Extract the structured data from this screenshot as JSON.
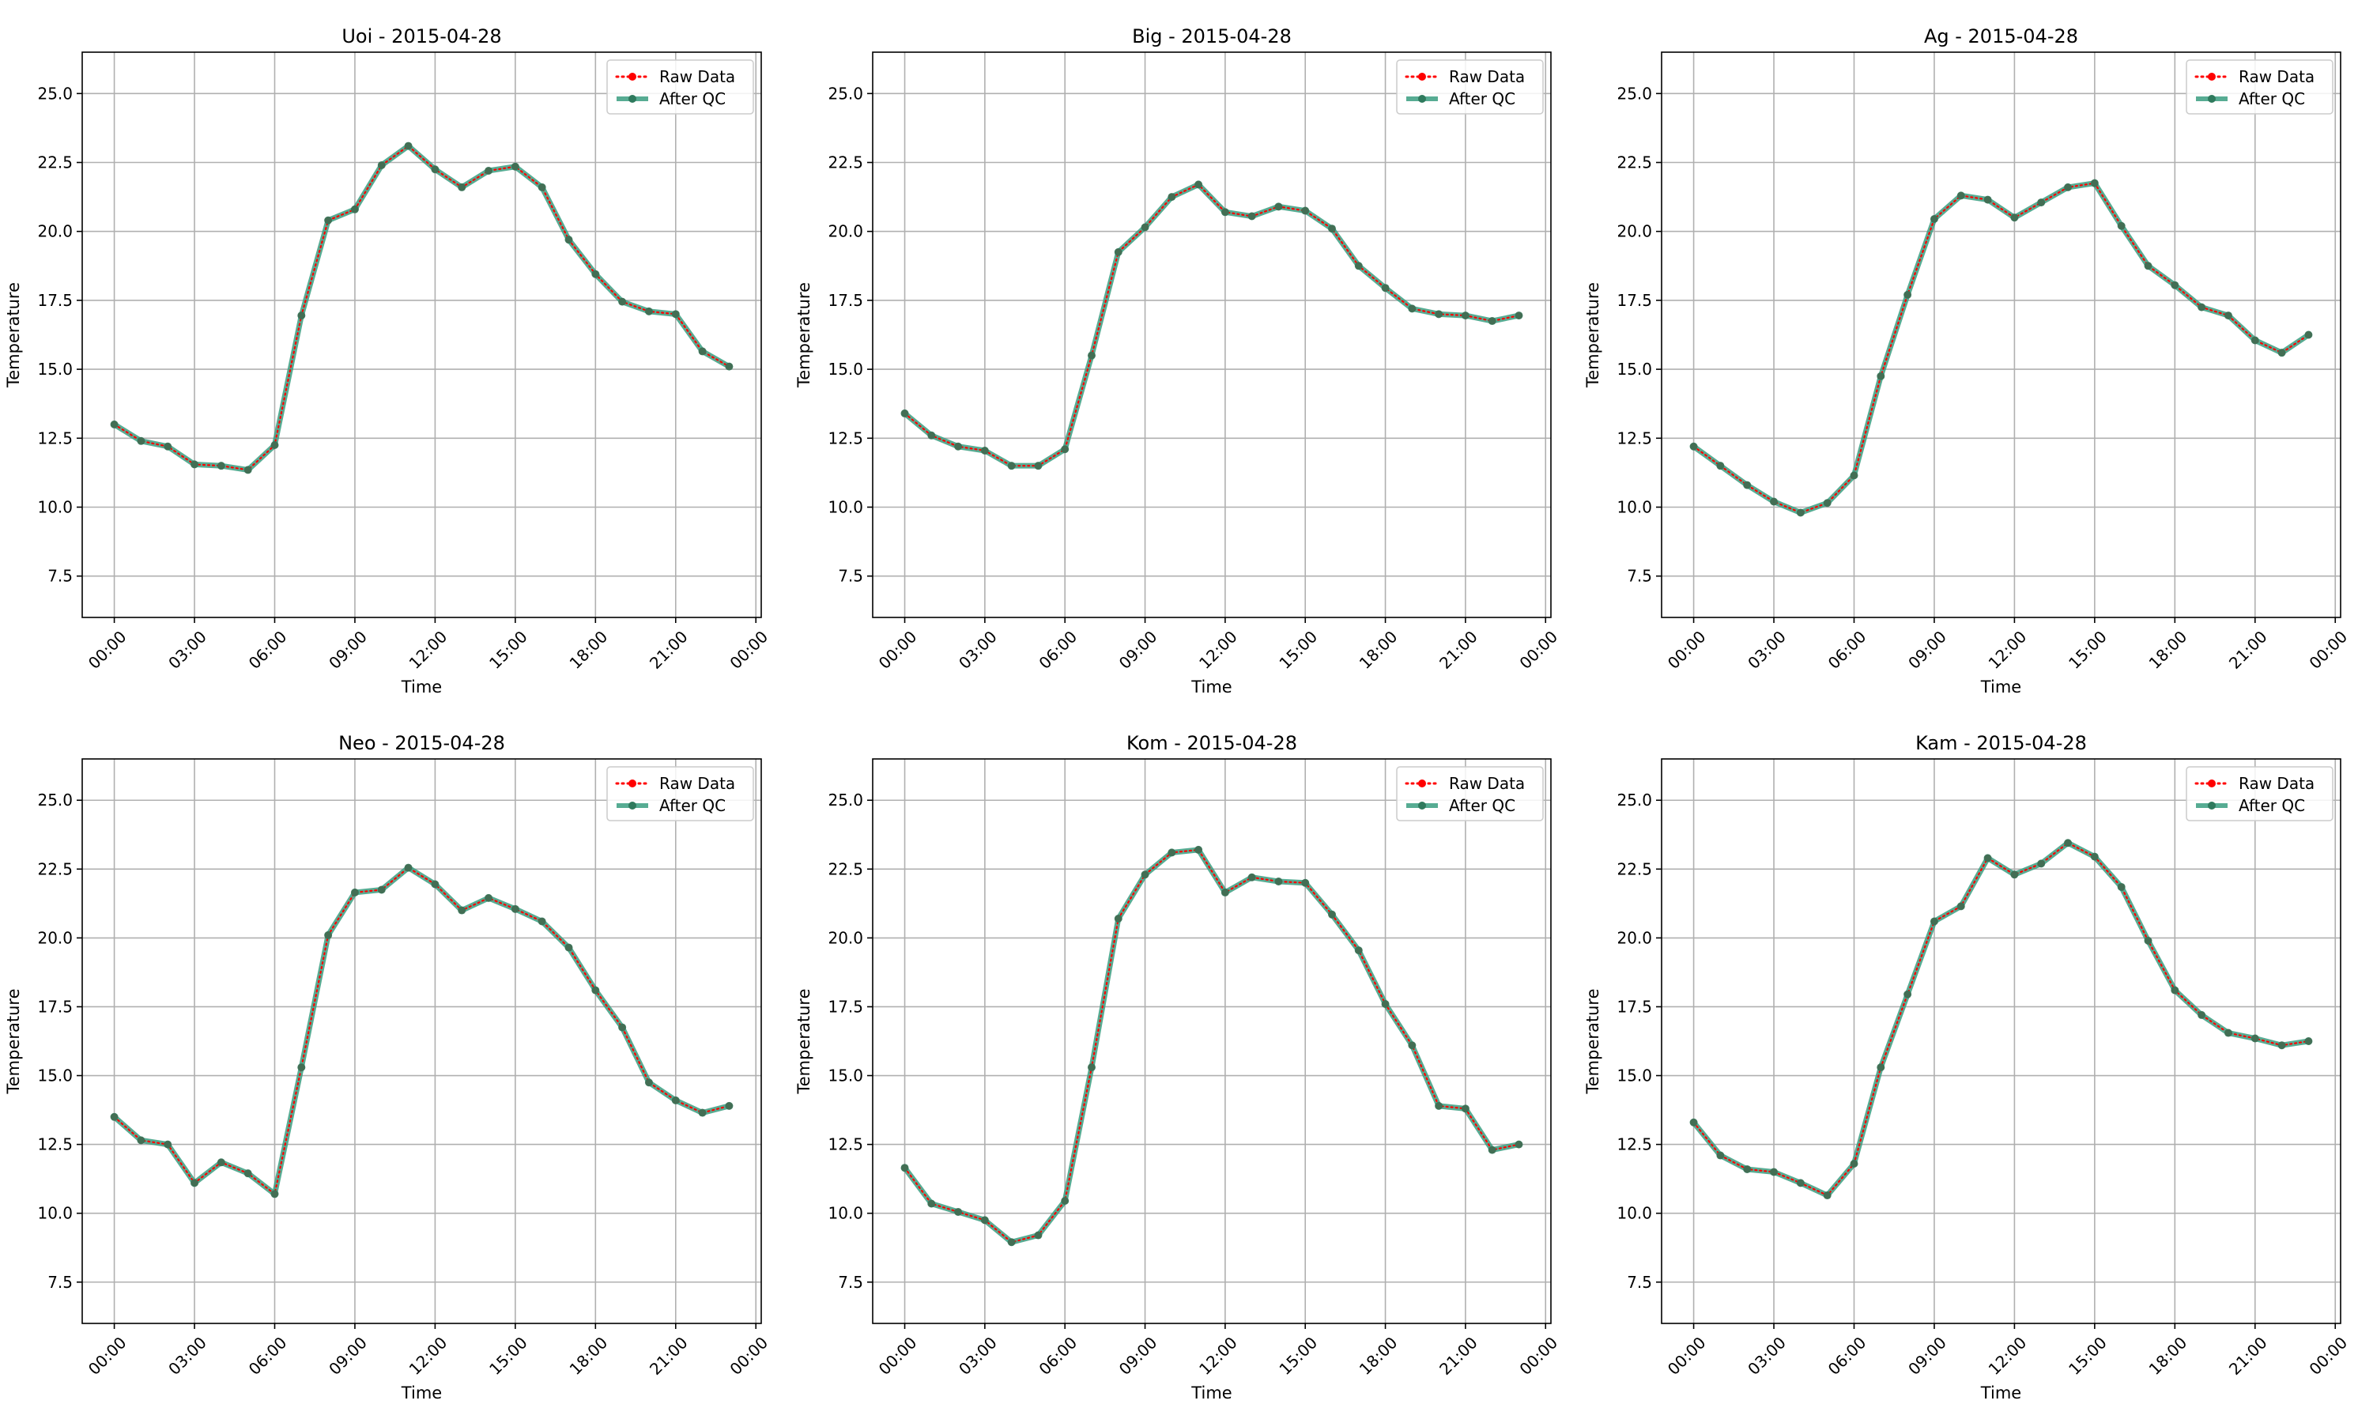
{
  "colors": {
    "raw": "#ff0000",
    "qc": "#2ca02c",
    "qc_line": "#3a9e80",
    "qc_marker": "#2f7a5d",
    "grid": "#b0b0b0",
    "axes": "#000000"
  },
  "legend_labels": [
    "Raw Data",
    "After QC"
  ],
  "chart_data": [
    {
      "type": "line",
      "title": "Uoi - 2015-04-28",
      "xlabel": "Time",
      "ylabel": "Temperature",
      "xticks": [
        "00:00",
        "03:00",
        "06:00",
        "09:00",
        "12:00",
        "15:00",
        "18:00",
        "21:00",
        "00:00"
      ],
      "yticks": [
        "7.5",
        "10.0",
        "12.5",
        "15.0",
        "17.5",
        "20.0",
        "22.5",
        "25.0"
      ],
      "xlim_hours": [
        -1.2,
        24.2
      ],
      "ylim": [
        6.0,
        26.5
      ],
      "grid": true,
      "legend_position": "upper right",
      "hours": [
        0,
        1,
        2,
        3,
        4,
        5,
        6,
        7,
        8,
        9,
        10,
        11,
        12,
        13,
        14,
        15,
        16,
        17,
        18,
        19,
        20,
        21,
        22,
        23
      ],
      "series": [
        {
          "name": "Raw Data",
          "values": [
            13.0,
            12.4,
            12.2,
            11.55,
            11.5,
            11.35,
            12.25,
            16.95,
            20.4,
            20.8,
            22.4,
            23.1,
            22.25,
            21.6,
            22.2,
            22.35,
            21.6,
            19.7,
            18.45,
            17.45,
            17.1,
            17.0,
            15.65,
            15.1
          ]
        },
        {
          "name": "After QC",
          "values": [
            13.0,
            12.4,
            12.2,
            11.55,
            11.5,
            11.35,
            12.25,
            16.95,
            20.4,
            20.8,
            22.4,
            23.1,
            22.25,
            21.6,
            22.2,
            22.35,
            21.6,
            19.7,
            18.45,
            17.45,
            17.1,
            17.0,
            15.65,
            15.1
          ]
        }
      ]
    },
    {
      "type": "line",
      "title": "Big - 2015-04-28",
      "xlabel": "Time",
      "ylabel": "Temperature",
      "xticks": [
        "00:00",
        "03:00",
        "06:00",
        "09:00",
        "12:00",
        "15:00",
        "18:00",
        "21:00",
        "00:00"
      ],
      "yticks": [
        "7.5",
        "10.0",
        "12.5",
        "15.0",
        "17.5",
        "20.0",
        "22.5",
        "25.0"
      ],
      "xlim_hours": [
        -1.2,
        24.2
      ],
      "ylim": [
        6.0,
        26.5
      ],
      "grid": true,
      "legend_position": "upper right",
      "hours": [
        0,
        1,
        2,
        3,
        4,
        5,
        6,
        7,
        8,
        9,
        10,
        11,
        12,
        13,
        14,
        15,
        16,
        17,
        18,
        19,
        20,
        21,
        22,
        23
      ],
      "series": [
        {
          "name": "Raw Data",
          "values": [
            13.4,
            12.6,
            12.2,
            12.05,
            11.5,
            11.5,
            12.1,
            15.5,
            19.25,
            20.15,
            21.25,
            21.7,
            20.7,
            20.55,
            20.9,
            20.75,
            20.1,
            18.75,
            17.95,
            17.2,
            17.0,
            16.95,
            16.75,
            16.95
          ]
        },
        {
          "name": "After QC",
          "values": [
            13.4,
            12.6,
            12.2,
            12.05,
            11.5,
            11.5,
            12.1,
            15.5,
            19.25,
            20.15,
            21.25,
            21.7,
            20.7,
            20.55,
            20.9,
            20.75,
            20.1,
            18.75,
            17.95,
            17.2,
            17.0,
            16.95,
            16.75,
            16.95
          ]
        }
      ]
    },
    {
      "type": "line",
      "title": "Ag - 2015-04-28",
      "xlabel": "Time",
      "ylabel": "Temperature",
      "xticks": [
        "00:00",
        "03:00",
        "06:00",
        "09:00",
        "12:00",
        "15:00",
        "18:00",
        "21:00",
        "00:00"
      ],
      "yticks": [
        "7.5",
        "10.0",
        "12.5",
        "15.0",
        "17.5",
        "20.0",
        "22.5",
        "25.0"
      ],
      "xlim_hours": [
        -1.2,
        24.2
      ],
      "ylim": [
        6.0,
        26.5
      ],
      "grid": true,
      "legend_position": "upper right",
      "hours": [
        0,
        1,
        2,
        3,
        4,
        5,
        6,
        7,
        8,
        9,
        10,
        11,
        12,
        13,
        14,
        15,
        16,
        17,
        18,
        19,
        20,
        21,
        22,
        23
      ],
      "series": [
        {
          "name": "Raw Data",
          "values": [
            12.2,
            11.5,
            10.8,
            10.2,
            9.8,
            10.15,
            11.15,
            14.75,
            17.7,
            20.45,
            21.3,
            21.15,
            20.5,
            21.05,
            21.6,
            21.75,
            20.2,
            18.75,
            18.05,
            17.25,
            16.95,
            16.05,
            15.6,
            16.25
          ]
        },
        {
          "name": "After QC",
          "values": [
            12.2,
            11.5,
            10.8,
            10.2,
            9.8,
            10.15,
            11.15,
            14.75,
            17.7,
            20.45,
            21.3,
            21.15,
            20.5,
            21.05,
            21.6,
            21.75,
            20.2,
            18.75,
            18.05,
            17.25,
            16.95,
            16.05,
            15.6,
            16.25
          ]
        }
      ]
    },
    {
      "type": "line",
      "title": "Neo - 2015-04-28",
      "xlabel": "Time",
      "ylabel": "Temperature",
      "xticks": [
        "00:00",
        "03:00",
        "06:00",
        "09:00",
        "12:00",
        "15:00",
        "18:00",
        "21:00",
        "00:00"
      ],
      "yticks": [
        "7.5",
        "10.0",
        "12.5",
        "15.0",
        "17.5",
        "20.0",
        "22.5",
        "25.0"
      ],
      "xlim_hours": [
        -1.2,
        24.2
      ],
      "ylim": [
        6.0,
        26.5
      ],
      "grid": true,
      "legend_position": "upper right",
      "hours": [
        0,
        1,
        2,
        3,
        4,
        5,
        6,
        7,
        8,
        9,
        10,
        11,
        12,
        13,
        14,
        15,
        16,
        17,
        18,
        19,
        20,
        21,
        22,
        23
      ],
      "series": [
        {
          "name": "Raw Data",
          "values": [
            13.5,
            12.65,
            12.5,
            11.1,
            11.85,
            11.45,
            10.7,
            15.3,
            20.1,
            21.65,
            21.75,
            22.55,
            21.95,
            21.0,
            21.45,
            21.05,
            20.6,
            19.65,
            18.1,
            16.75,
            14.75,
            14.1,
            13.65,
            13.9
          ]
        },
        {
          "name": "After QC",
          "values": [
            13.5,
            12.65,
            12.5,
            11.1,
            11.85,
            11.45,
            10.7,
            15.3,
            20.1,
            21.65,
            21.75,
            22.55,
            21.95,
            21.0,
            21.45,
            21.05,
            20.6,
            19.65,
            18.1,
            16.75,
            14.75,
            14.1,
            13.65,
            13.9
          ]
        }
      ]
    },
    {
      "type": "line",
      "title": "Kom - 2015-04-28",
      "xlabel": "Time",
      "ylabel": "Temperature",
      "xticks": [
        "00:00",
        "03:00",
        "06:00",
        "09:00",
        "12:00",
        "15:00",
        "18:00",
        "21:00",
        "00:00"
      ],
      "yticks": [
        "7.5",
        "10.0",
        "12.5",
        "15.0",
        "17.5",
        "20.0",
        "22.5",
        "25.0"
      ],
      "xlim_hours": [
        -1.2,
        24.2
      ],
      "ylim": [
        6.0,
        26.5
      ],
      "grid": true,
      "legend_position": "upper right",
      "hours": [
        0,
        1,
        2,
        3,
        4,
        5,
        6,
        7,
        8,
        9,
        10,
        11,
        12,
        13,
        14,
        15,
        16,
        17,
        18,
        19,
        20,
        21,
        22,
        23
      ],
      "series": [
        {
          "name": "Raw Data",
          "values": [
            11.65,
            10.35,
            10.05,
            9.75,
            8.95,
            9.2,
            10.45,
            15.3,
            20.7,
            22.3,
            23.1,
            23.2,
            21.65,
            22.2,
            22.05,
            22.0,
            20.85,
            19.55,
            17.6,
            16.1,
            13.9,
            13.8,
            12.3,
            12.5
          ]
        },
        {
          "name": "After QC",
          "values": [
            11.65,
            10.35,
            10.05,
            9.75,
            8.95,
            9.2,
            10.45,
            15.3,
            20.7,
            22.3,
            23.1,
            23.2,
            21.65,
            22.2,
            22.05,
            22.0,
            20.85,
            19.55,
            17.6,
            16.1,
            13.9,
            13.8,
            12.3,
            12.5
          ]
        }
      ]
    },
    {
      "type": "line",
      "title": "Kam - 2015-04-28",
      "xlabel": "Time",
      "ylabel": "Temperature",
      "xticks": [
        "00:00",
        "03:00",
        "06:00",
        "09:00",
        "12:00",
        "15:00",
        "18:00",
        "21:00",
        "00:00"
      ],
      "yticks": [
        "7.5",
        "10.0",
        "12.5",
        "15.0",
        "17.5",
        "20.0",
        "22.5",
        "25.0"
      ],
      "xlim_hours": [
        -1.2,
        24.2
      ],
      "ylim": [
        6.0,
        26.5
      ],
      "grid": true,
      "legend_position": "upper right",
      "hours": [
        0,
        1,
        2,
        3,
        4,
        5,
        6,
        7,
        8,
        9,
        10,
        11,
        12,
        13,
        14,
        15,
        16,
        17,
        18,
        19,
        20,
        21,
        22,
        23
      ],
      "series": [
        {
          "name": "Raw Data",
          "values": [
            13.3,
            12.1,
            11.6,
            11.5,
            11.1,
            10.65,
            11.8,
            15.3,
            17.95,
            20.6,
            21.15,
            22.9,
            22.3,
            22.7,
            23.45,
            22.95,
            21.85,
            19.9,
            18.1,
            17.2,
            16.55,
            16.35,
            16.1,
            16.25
          ]
        },
        {
          "name": "After QC",
          "values": [
            13.3,
            12.1,
            11.6,
            11.5,
            11.1,
            10.65,
            11.8,
            15.3,
            17.95,
            20.6,
            21.15,
            22.9,
            22.3,
            22.7,
            23.45,
            22.95,
            21.85,
            19.9,
            18.1,
            17.2,
            16.55,
            16.35,
            16.1,
            16.25
          ]
        }
      ]
    }
  ]
}
